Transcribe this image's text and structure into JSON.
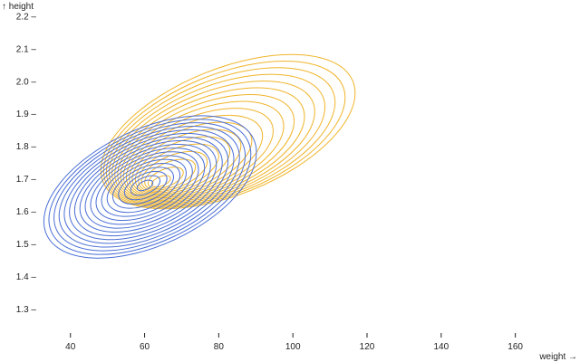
{
  "chart_data": {
    "type": "contour",
    "xlabel": "weight →",
    "ylabel": "↑ height",
    "xlim": [
      32,
      175
    ],
    "ylim": [
      1.22,
      2.25
    ],
    "x_ticks": [
      40,
      60,
      80,
      100,
      120,
      140,
      160
    ],
    "y_ticks": [
      1.3,
      1.4,
      1.5,
      1.6,
      1.7,
      1.8,
      1.9,
      2.0,
      2.1,
      2.2
    ],
    "x_tick_labels": [
      "40",
      "60",
      "80",
      "100",
      "120",
      "140",
      "160"
    ],
    "y_tick_labels": [
      "1.3 –",
      "1.4 –",
      "1.5 –",
      "1.6 –",
      "1.7 –",
      "1.8 –",
      "1.9 –",
      "2.0 –",
      "2.1 –",
      "2.2 –"
    ],
    "series": [
      {
        "color": "#f0b429",
        "contour_levels": 18,
        "center": {
          "weight": 63,
          "height": 1.68
        },
        "outer_extent": {
          "weight": [
            52,
            113
          ],
          "height": [
            1.59,
            2.1
          ]
        }
      },
      {
        "color": "#4a6fd6",
        "contour_levels": 18,
        "center": {
          "weight": 60,
          "height": 1.68
        },
        "outer_extent": {
          "weight": [
            37,
            86
          ],
          "height": [
            1.44,
            1.91
          ]
        }
      }
    ],
    "grid": false,
    "legend": "none"
  }
}
